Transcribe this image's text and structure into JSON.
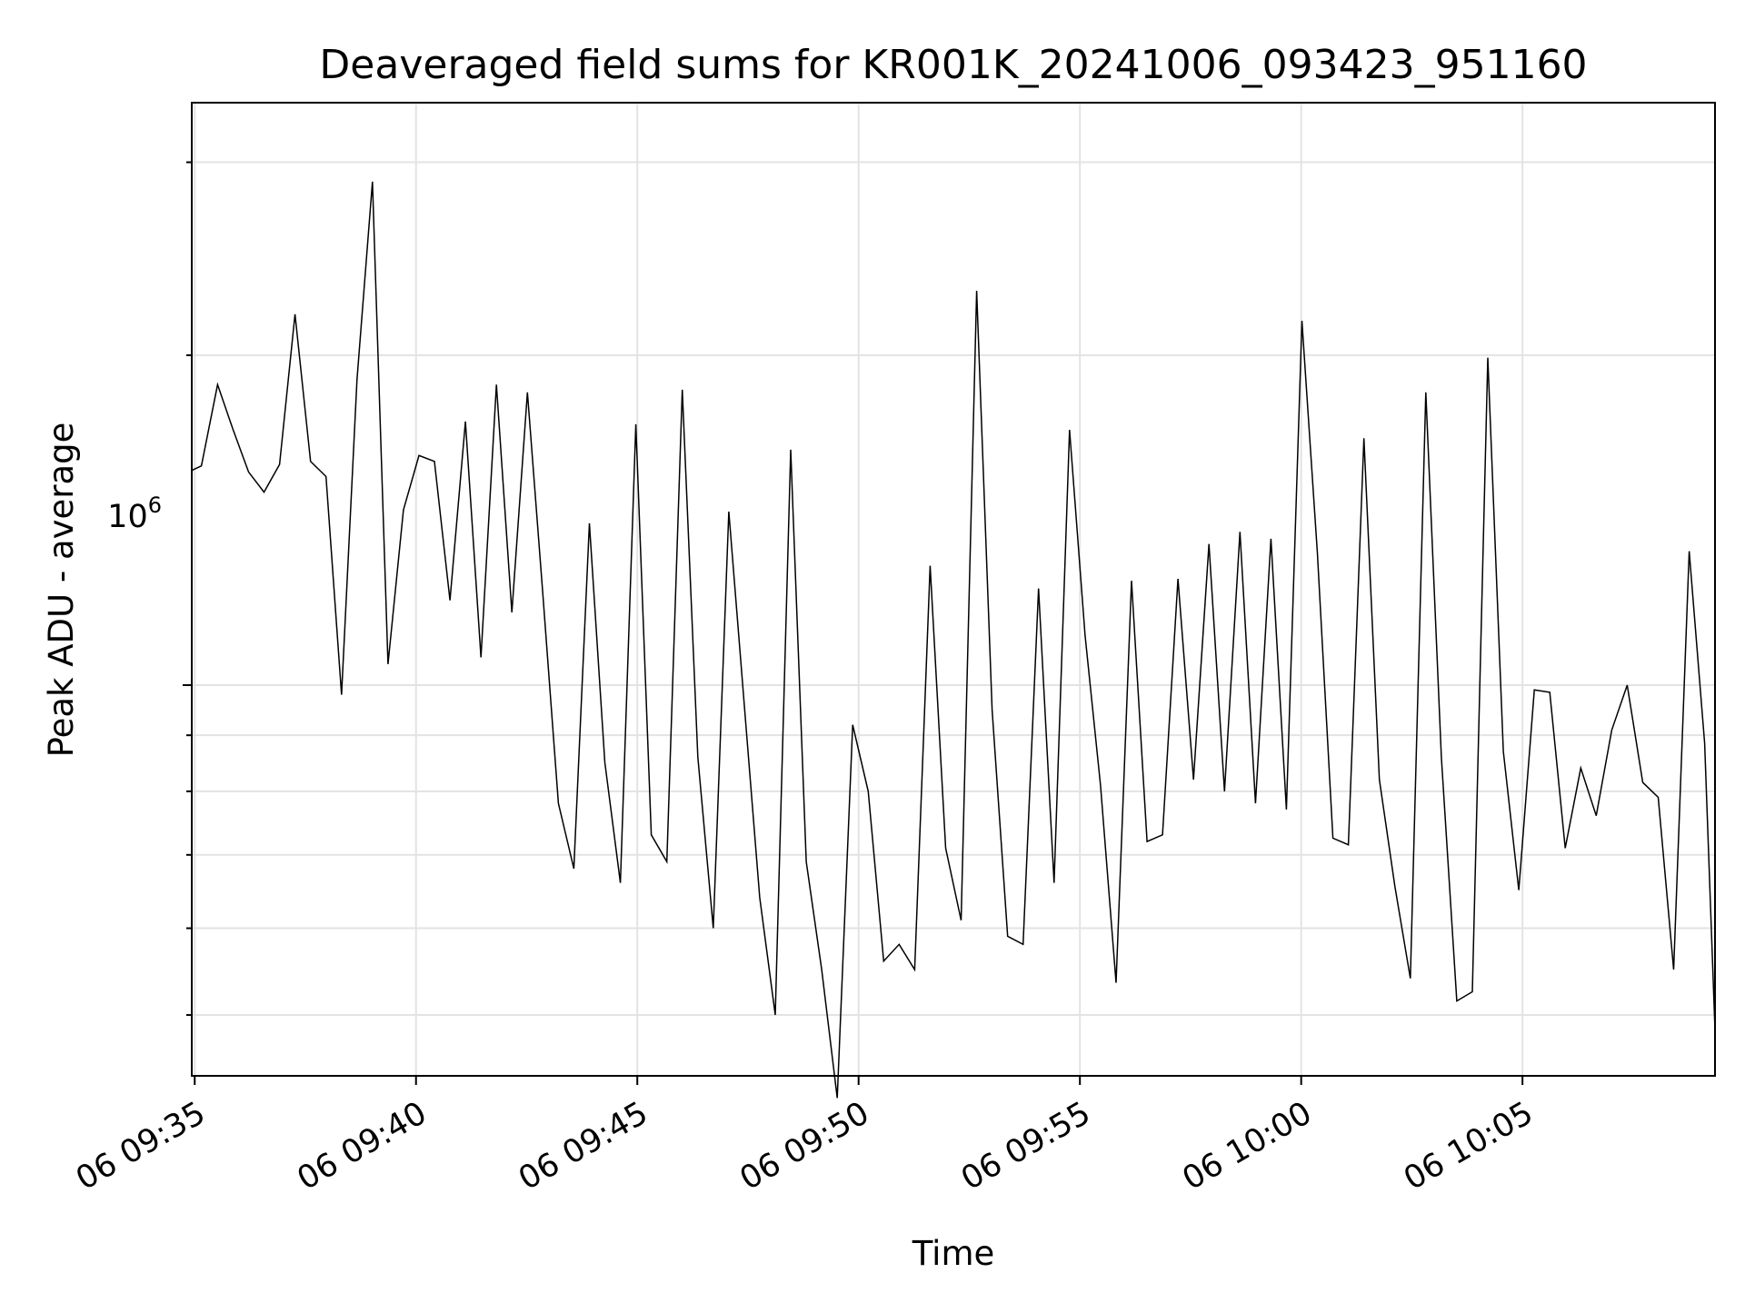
{
  "chart_data": {
    "type": "line",
    "title": "Deaveraged field sums for KR001K_20241006_093423_951160",
    "xlabel": "Time",
    "ylabel": "Peak ADU - average",
    "y_scale": "log",
    "y_tick_label": {
      "base": "10",
      "exponent": "6"
    },
    "y_major_tick": 1000000,
    "y_minor_ticks": [
      500000,
      600000,
      700000,
      800000,
      900000,
      2000000,
      3000000
    ],
    "ylim": [
      440000,
      3400000
    ],
    "xlim": [
      "2024-10-06 09:34:56",
      "2024-10-06 10:09:21"
    ],
    "x_ticks": [
      {
        "time": "2024-10-06 09:35:00",
        "label": "06 09:35"
      },
      {
        "time": "2024-10-06 09:40:00",
        "label": "06 09:40"
      },
      {
        "time": "2024-10-06 09:45:00",
        "label": "06 09:45"
      },
      {
        "time": "2024-10-06 09:50:00",
        "label": "06 09:50"
      },
      {
        "time": "2024-10-06 09:55:00",
        "label": "06 09:55"
      },
      {
        "time": "2024-10-06 10:00:00",
        "label": "06 10:00"
      },
      {
        "time": "2024-10-06 10:05:00",
        "label": "06 10:05"
      }
    ],
    "grid": true,
    "line_color": "#000000",
    "grid_color": "#e3e3e3",
    "series": [
      {
        "x": [
          "2024-10-06 09:34:56",
          "2024-10-06 09:35:09",
          "2024-10-06 09:35:31",
          "2024-10-06 09:35:52",
          "2024-10-06 09:36:13",
          "2024-10-06 09:36:34",
          "2024-10-06 09:36:55",
          "2024-10-06 09:37:16",
          "2024-10-06 09:37:37",
          "2024-10-06 09:37:58",
          "2024-10-06 09:38:19",
          "2024-10-06 09:38:40",
          "2024-10-06 09:39:01",
          "2024-10-06 09:39:22",
          "2024-10-06 09:39:43",
          "2024-10-06 09:40:04",
          "2024-10-06 09:40:25",
          "2024-10-06 09:40:46",
          "2024-10-06 09:41:07",
          "2024-10-06 09:41:28",
          "2024-10-06 09:41:49",
          "2024-10-06 09:42:10",
          "2024-10-06 09:42:31",
          "2024-10-06 09:42:52",
          "2024-10-06 09:43:13",
          "2024-10-06 09:43:34",
          "2024-10-06 09:43:55",
          "2024-10-06 09:44:16",
          "2024-10-06 09:44:37",
          "2024-10-06 09:44:58",
          "2024-10-06 09:45:19",
          "2024-10-06 09:45:40",
          "2024-10-06 09:46:01",
          "2024-10-06 09:46:22",
          "2024-10-06 09:46:43",
          "2024-10-06 09:47:04",
          "2024-10-06 09:47:25",
          "2024-10-06 09:47:46",
          "2024-10-06 09:48:07",
          "2024-10-06 09:48:28",
          "2024-10-06 09:48:49",
          "2024-10-06 09:49:10",
          "2024-10-06 09:49:31",
          "2024-10-06 09:49:52",
          "2024-10-06 09:50:13",
          "2024-10-06 09:50:34",
          "2024-10-06 09:50:55",
          "2024-10-06 09:51:16",
          "2024-10-06 09:51:37",
          "2024-10-06 09:51:58",
          "2024-10-06 09:52:19",
          "2024-10-06 09:52:40",
          "2024-10-06 09:53:01",
          "2024-10-06 09:53:22",
          "2024-10-06 09:53:43",
          "2024-10-06 09:54:04",
          "2024-10-06 09:54:25",
          "2024-10-06 09:54:46",
          "2024-10-06 09:55:07",
          "2024-10-06 09:55:28",
          "2024-10-06 09:55:49",
          "2024-10-06 09:56:10",
          "2024-10-06 09:56:31",
          "2024-10-06 09:56:52",
          "2024-10-06 09:57:13",
          "2024-10-06 09:57:34",
          "2024-10-06 09:57:55",
          "2024-10-06 09:58:16",
          "2024-10-06 09:58:37",
          "2024-10-06 09:58:58",
          "2024-10-06 09:59:19",
          "2024-10-06 09:59:40",
          "2024-10-06 10:00:01",
          "2024-10-06 10:00:22",
          "2024-10-06 10:00:43",
          "2024-10-06 10:01:04",
          "2024-10-06 10:01:25",
          "2024-10-06 10:01:46",
          "2024-10-06 10:02:07",
          "2024-10-06 10:02:28",
          "2024-10-06 10:02:49",
          "2024-10-06 10:03:10",
          "2024-10-06 10:03:31",
          "2024-10-06 10:03:52",
          "2024-10-06 10:04:13",
          "2024-10-06 10:04:34",
          "2024-10-06 10:04:55",
          "2024-10-06 10:05:16",
          "2024-10-06 10:05:37",
          "2024-10-06 10:05:58",
          "2024-10-06 10:06:19",
          "2024-10-06 10:06:40",
          "2024-10-06 10:07:01",
          "2024-10-06 10:07:22",
          "2024-10-06 10:07:43",
          "2024-10-06 10:08:04",
          "2024-10-06 10:08:25",
          "2024-10-06 10:08:46",
          "2024-10-06 10:09:07",
          "2024-10-06 10:09:21"
        ],
        "y": [
          1570000,
          1585000,
          1880000,
          1710000,
          1565000,
          1500000,
          1590000,
          2180000,
          1600000,
          1550000,
          980000,
          1900000,
          2880000,
          1045000,
          1445000,
          1620000,
          1600000,
          1195000,
          1740000,
          1060000,
          1880000,
          1165000,
          1850000,
          1210000,
          780000,
          680000,
          1405000,
          850000,
          660000,
          1730000,
          730000,
          690000,
          1860000,
          860000,
          600000,
          1440000,
          960000,
          640000,
          500000,
          1640000,
          690000,
          550000,
          420000,
          920000,
          800000,
          560000,
          580000,
          550000,
          1285000,
          710000,
          610000,
          2290000,
          950000,
          590000,
          580000,
          1225000,
          660000,
          1710000,
          1110000,
          810000,
          535000,
          1245000,
          720000,
          730000,
          1250000,
          820000,
          1345000,
          800000,
          1380000,
          780000,
          1360000,
          770000,
          2150000,
          1320000,
          725000,
          715000,
          1680000,
          820000,
          655000,
          540000,
          1850000,
          860000,
          515000,
          525000,
          1990000,
          870000,
          650000,
          990000,
          985000,
          710000,
          840000,
          760000,
          910000,
          1000000,
          815000,
          790000,
          550000,
          1325000,
          885000,
          484000
        ]
      }
    ]
  }
}
